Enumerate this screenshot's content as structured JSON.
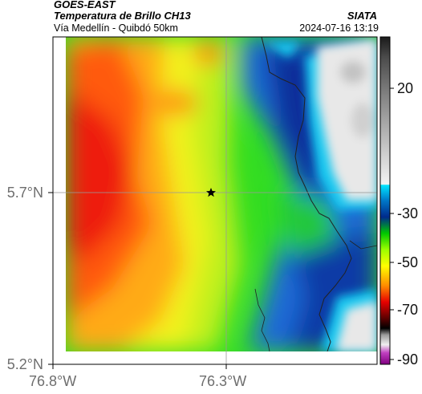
{
  "header": {
    "satellite": "GOES-EAST",
    "product": "Temperatura de Brillo CH13",
    "route": "Vía Medellín - Quibdó 50km",
    "organization": "SIATA",
    "datetime": "2024-07-16 13:19"
  },
  "axes": {
    "y_ticks": [
      "5.7°N",
      "5.2°N"
    ],
    "x_ticks": [
      "76.8°W",
      "76.3°W"
    ]
  },
  "colorbar": {
    "labels": [
      "20",
      "-30",
      "-50",
      "-70",
      "-90"
    ]
  },
  "marker": {
    "symbol": "star"
  }
}
